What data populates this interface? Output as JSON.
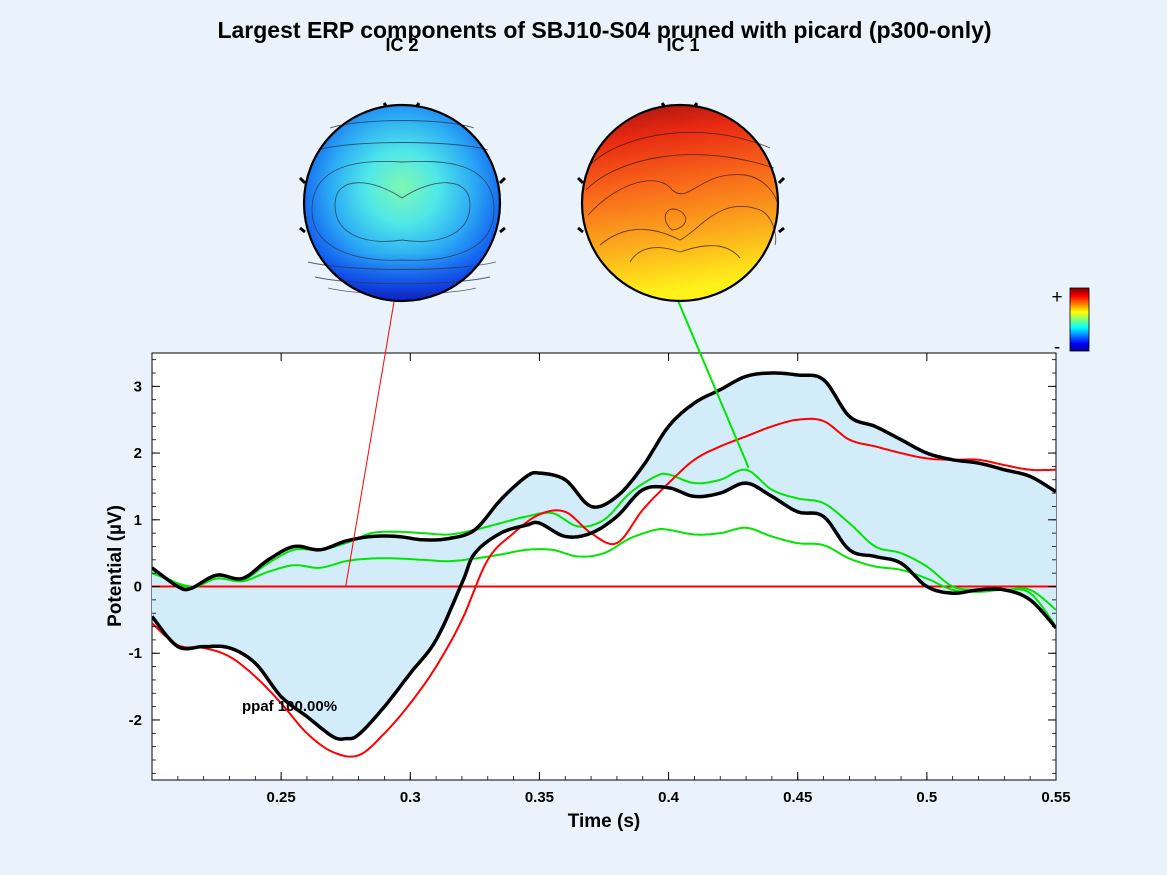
{
  "figure_title": "Largest ERP components of SBJ10-S04 pruned with picard (p300-only)",
  "colors": {
    "background": "#eaf3fc",
    "envelope_fill": "#d3ecfa",
    "envelope_line": "#000000",
    "component_1": "#00e600",
    "component_2": "#ff0000",
    "zero_line": "#ff0000"
  },
  "colorbar": {
    "plus_label": "+",
    "minus_label": "-",
    "colormap": "jet"
  },
  "scalp_maps": [
    {
      "label": "IC 2",
      "colormap_range": "blue-cyan",
      "linked_series": "IC 2"
    },
    {
      "label": "IC 1",
      "colormap_range": "red-yellow",
      "linked_series": "IC 1"
    }
  ],
  "chart_data": {
    "type": "line",
    "title": "Largest ERP components of SBJ10-S04 pruned with picard (p300-only)",
    "xlabel": "Time (s)",
    "ylabel": "Potential (µV)",
    "xlim": [
      0.2,
      0.55
    ],
    "ylim": [
      -2.9,
      3.5
    ],
    "xticks": [
      0.25,
      0.3,
      0.35,
      0.4,
      0.45,
      0.5,
      0.55
    ],
    "xtick_labels": [
      "0.25",
      "0.3",
      "0.35",
      "0.4",
      "0.45",
      "0.5",
      "0.55"
    ],
    "yticks": [
      -2,
      -1,
      0,
      1,
      2,
      3
    ],
    "ytick_labels": [
      "-2",
      "-1",
      "0",
      "1",
      "2",
      "3"
    ],
    "annotation": "ppaf 100.00%",
    "grid": false,
    "series": [
      {
        "name": "envelope-upper",
        "x": [
          0.2,
          0.21,
          0.215,
          0.225,
          0.235,
          0.245,
          0.255,
          0.265,
          0.275,
          0.285,
          0.295,
          0.305,
          0.315,
          0.325,
          0.335,
          0.345,
          0.35,
          0.36,
          0.37,
          0.38,
          0.39,
          0.4,
          0.41,
          0.42,
          0.43,
          0.44,
          0.45,
          0.46,
          0.47,
          0.48,
          0.49,
          0.5,
          0.51,
          0.52,
          0.53,
          0.54,
          0.55
        ],
        "y": [
          0.28,
          0.0,
          -0.03,
          0.17,
          0.12,
          0.4,
          0.6,
          0.55,
          0.68,
          0.75,
          0.75,
          0.7,
          0.72,
          0.85,
          1.3,
          1.65,
          1.7,
          1.6,
          1.2,
          1.35,
          1.8,
          2.4,
          2.75,
          2.95,
          3.15,
          3.2,
          3.17,
          3.1,
          2.55,
          2.4,
          2.2,
          2.0,
          1.9,
          1.85,
          1.75,
          1.65,
          1.42
        ]
      },
      {
        "name": "envelope-lower",
        "x": [
          0.2,
          0.21,
          0.22,
          0.23,
          0.24,
          0.25,
          0.26,
          0.27,
          0.275,
          0.28,
          0.29,
          0.3,
          0.31,
          0.32,
          0.325,
          0.335,
          0.345,
          0.35,
          0.36,
          0.37,
          0.38,
          0.39,
          0.4,
          0.41,
          0.42,
          0.43,
          0.44,
          0.45,
          0.46,
          0.47,
          0.48,
          0.49,
          0.5,
          0.51,
          0.52,
          0.53,
          0.54,
          0.55
        ],
        "y": [
          -0.45,
          -0.9,
          -0.9,
          -0.92,
          -1.15,
          -1.65,
          -1.95,
          -2.25,
          -2.28,
          -2.22,
          -1.8,
          -1.3,
          -0.8,
          0.05,
          0.5,
          0.8,
          0.92,
          0.95,
          0.75,
          0.8,
          1.05,
          1.45,
          1.48,
          1.35,
          1.4,
          1.55,
          1.35,
          1.12,
          1.05,
          0.55,
          0.45,
          0.35,
          0.0,
          -0.1,
          -0.05,
          -0.05,
          -0.2,
          -0.62
        ]
      },
      {
        "name": "IC 1 upper",
        "x": [
          0.2,
          0.215,
          0.225,
          0.235,
          0.245,
          0.255,
          0.265,
          0.275,
          0.285,
          0.295,
          0.305,
          0.315,
          0.325,
          0.335,
          0.345,
          0.355,
          0.365,
          0.375,
          0.385,
          0.395,
          0.4,
          0.41,
          0.42,
          0.43,
          0.44,
          0.45,
          0.46,
          0.47,
          0.48,
          0.49,
          0.5,
          0.51,
          0.52,
          0.53,
          0.54,
          0.55
        ],
        "y": [
          0.25,
          -0.02,
          0.18,
          0.1,
          0.35,
          0.55,
          0.55,
          0.65,
          0.8,
          0.82,
          0.8,
          0.78,
          0.85,
          0.95,
          1.05,
          1.1,
          0.9,
          1.0,
          1.4,
          1.65,
          1.68,
          1.55,
          1.6,
          1.75,
          1.45,
          1.32,
          1.25,
          0.95,
          0.6,
          0.5,
          0.3,
          0.0,
          -0.05,
          -0.05,
          -0.05,
          -0.35
        ]
      },
      {
        "name": "IC 1 lower",
        "x": [
          0.2,
          0.215,
          0.225,
          0.235,
          0.245,
          0.255,
          0.265,
          0.275,
          0.285,
          0.295,
          0.305,
          0.315,
          0.325,
          0.335,
          0.345,
          0.355,
          0.365,
          0.375,
          0.385,
          0.395,
          0.4,
          0.41,
          0.42,
          0.43,
          0.44,
          0.45,
          0.46,
          0.47,
          0.48,
          0.49,
          0.5,
          0.51,
          0.52,
          0.53,
          0.54,
          0.55
        ],
        "y": [
          0.2,
          0.0,
          0.12,
          0.08,
          0.22,
          0.32,
          0.28,
          0.38,
          0.42,
          0.42,
          0.4,
          0.38,
          0.42,
          0.48,
          0.55,
          0.55,
          0.45,
          0.5,
          0.72,
          0.85,
          0.85,
          0.78,
          0.8,
          0.88,
          0.75,
          0.65,
          0.62,
          0.42,
          0.3,
          0.25,
          0.12,
          -0.05,
          -0.08,
          -0.05,
          -0.1,
          -0.6
        ]
      },
      {
        "name": "IC 2",
        "x": [
          0.2,
          0.21,
          0.22,
          0.23,
          0.24,
          0.25,
          0.26,
          0.27,
          0.28,
          0.29,
          0.3,
          0.31,
          0.32,
          0.33,
          0.34,
          0.35,
          0.36,
          0.37,
          0.38,
          0.39,
          0.4,
          0.41,
          0.42,
          0.43,
          0.44,
          0.45,
          0.46,
          0.47,
          0.48,
          0.49,
          0.5,
          0.51,
          0.52,
          0.53,
          0.54,
          0.55
        ],
        "y": [
          -0.55,
          -0.88,
          -0.92,
          -1.05,
          -1.35,
          -1.75,
          -2.2,
          -2.48,
          -2.53,
          -2.2,
          -1.75,
          -1.2,
          -0.5,
          0.4,
          0.8,
          1.08,
          1.12,
          0.8,
          0.65,
          1.15,
          1.55,
          1.9,
          2.1,
          2.25,
          2.4,
          2.5,
          2.48,
          2.2,
          2.1,
          2.0,
          1.92,
          1.9,
          1.9,
          1.82,
          1.75,
          1.75
        ]
      },
      {
        "name": "IC 2 zero",
        "x": [
          0.2,
          0.55
        ],
        "y": [
          0,
          0
        ]
      }
    ]
  }
}
